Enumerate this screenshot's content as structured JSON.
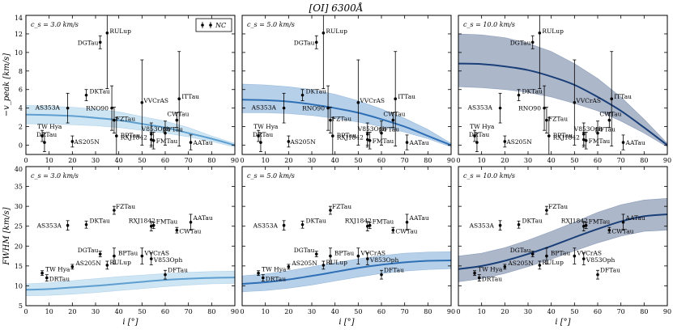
{
  "figure_title": "[OI] 6300Å",
  "legend": {
    "label": "NC"
  },
  "chart_data": {
    "type": "scatter",
    "title": "[OI] 6300Å",
    "xlabel": "i [°]",
    "xlim": [
      0,
      90
    ],
    "xticks": [
      0,
      10,
      20,
      30,
      40,
      50,
      60,
      70,
      80,
      90
    ],
    "rows": [
      {
        "ylabel": "−v_peak [km/s]",
        "ylim": [
          -1,
          14
        ],
        "yticks": [
          0,
          2,
          4,
          6,
          8,
          10,
          12,
          14
        ],
        "stars": [
          {
            "name": "TW Hya",
            "x": 7,
            "y": 1.0,
            "err": 0.6,
            "lx": -6,
            "ly": -9
          },
          {
            "name": "DRTau",
            "x": 8,
            "y": 0.3,
            "err": 1.0,
            "lx": -10,
            "ly": -7
          },
          {
            "name": "AS205N",
            "x": 20,
            "y": 0.4,
            "err": 0.6,
            "lx": 2,
            "ly": 3
          },
          {
            "name": "AS353A",
            "x": 18,
            "y": 4.0,
            "err": 1.6,
            "lx": -40,
            "ly": 2
          },
          {
            "name": "DKTau",
            "x": 26,
            "y": 5.4,
            "err": 0.6,
            "lx": 4,
            "ly": -2
          },
          {
            "name": "DGTau",
            "x": 32,
            "y": 11.1,
            "err": 0.7,
            "lx": -28,
            "ly": 3
          },
          {
            "name": "RULup",
            "x": 35,
            "y": 12.1,
            "err": 6.0,
            "lx": 3,
            "ly": 0
          },
          {
            "name": "RNO90",
            "x": 37,
            "y": 4.0,
            "err": 2.4,
            "lx": -32,
            "ly": 3
          },
          {
            "name": "FZTau",
            "x": 38,
            "y": 2.7,
            "err": 1.4,
            "lx": 2,
            "ly": 1
          },
          {
            "name": "BPTau",
            "x": 39,
            "y": 1.0,
            "err": 2.0,
            "lx": 5,
            "ly": 2
          },
          {
            "name": "VVCrAS",
            "x": 50,
            "y": 4.6,
            "err": 4.6,
            "lx": 2,
            "ly": 0
          },
          {
            "name": "V853Oph",
            "x": 54,
            "y": 1.2,
            "err": 1.2,
            "lx": -12,
            "ly": -4
          },
          {
            "name": "RXJ1842",
            "x": 54,
            "y": 0.6,
            "err": 0.8,
            "lx": -38,
            "ly": 0
          },
          {
            "name": "FMTau",
            "x": 55,
            "y": 0.5,
            "err": 0.9,
            "lx": 3,
            "ly": 3
          },
          {
            "name": "DFTau",
            "x": 60,
            "y": 1.3,
            "err": 1.3,
            "lx": -3,
            "ly": -2
          },
          {
            "name": "CWTau",
            "x": 65,
            "y": 2.7,
            "err": 0.8,
            "lx": -12,
            "ly": -5
          },
          {
            "name": "ITTau",
            "x": 66,
            "y": 5.0,
            "err": 5.1,
            "lx": 3,
            "ly": 0
          },
          {
            "name": "AATau",
            "x": 71,
            "y": 0.3,
            "err": 0.8,
            "lx": 3,
            "ly": 3
          }
        ]
      },
      {
        "ylabel": "FWHM [km/s]",
        "ylim": [
          5,
          40
        ],
        "yticks": [
          5,
          10,
          15,
          20,
          25,
          30,
          35,
          40
        ],
        "stars": [
          {
            "name": "TW Hya",
            "x": 7,
            "y": 13.2,
            "err": 0.6,
            "lx": 4,
            "ly": -2
          },
          {
            "name": "DRTau",
            "x": 9,
            "y": 12.0,
            "err": 0.8,
            "lx": 3,
            "ly": 4
          },
          {
            "name": "AS205N",
            "x": 20,
            "y": 14.8,
            "err": 0.6,
            "lx": 4,
            "ly": -2
          },
          {
            "name": "AS353A",
            "x": 18,
            "y": 25.2,
            "err": 1.2,
            "lx": -38,
            "ly": 3
          },
          {
            "name": "DKTau",
            "x": 26,
            "y": 25.4,
            "err": 0.9,
            "lx": 4,
            "ly": -2
          },
          {
            "name": "DGTau",
            "x": 32,
            "y": 18.0,
            "err": 0.7,
            "lx": -28,
            "ly": -2
          },
          {
            "name": "RULup",
            "x": 35,
            "y": 15.2,
            "err": 1.0,
            "lx": 3,
            "ly": -1
          },
          {
            "name": "BPTau",
            "x": 38,
            "y": 17.5,
            "err": 2.0,
            "lx": 5,
            "ly": -1
          },
          {
            "name": "FZTau",
            "x": 38,
            "y": 29.0,
            "err": 1.0,
            "lx": 2,
            "ly": -2
          },
          {
            "name": "RXJ1842",
            "x": 54,
            "y": 25.0,
            "err": 1.2,
            "lx": -28,
            "ly": -4
          },
          {
            "name": "FMTau",
            "x": 55,
            "y": 25.2,
            "err": 0.8,
            "lx": 3,
            "ly": -2
          },
          {
            "name": "VVCrAS",
            "x": 50,
            "y": 17.5,
            "err": 2.0,
            "lx": 3,
            "ly": -1
          },
          {
            "name": "V853Oph",
            "x": 54,
            "y": 16.8,
            "err": 1.5,
            "lx": 3,
            "ly": 4
          },
          {
            "name": "DFTau",
            "x": 60,
            "y": 12.8,
            "err": 1.1,
            "lx": 3,
            "ly": -3
          },
          {
            "name": "CWTau",
            "x": 65,
            "y": 24.0,
            "err": 0.7,
            "lx": 3,
            "ly": 4
          },
          {
            "name": "AATau",
            "x": 71,
            "y": 26.0,
            "err": 2.0,
            "lx": 3,
            "ly": -3
          }
        ]
      }
    ],
    "columns": [
      {
        "label": "c_s = 3.0 km/s",
        "line_color": "#5e9fd0",
        "band_color": "#a6cfea",
        "band_opacity": 0.55,
        "vpeak_model": {
          "i": [
            0,
            10,
            20,
            30,
            40,
            50,
            60,
            70,
            80,
            90
          ],
          "mid": [
            3.3,
            3.25,
            3.15,
            2.95,
            2.7,
            2.3,
            1.9,
            1.3,
            0.7,
            0.0
          ],
          "lo": [
            2.3,
            2.3,
            2.2,
            2.1,
            1.9,
            1.6,
            1.3,
            0.9,
            0.4,
            -0.2
          ],
          "hi": [
            4.3,
            4.2,
            4.1,
            3.9,
            3.6,
            3.1,
            2.6,
            1.9,
            1.0,
            0.2
          ]
        },
        "fwhm_model": {
          "i": [
            0,
            10,
            20,
            30,
            40,
            50,
            60,
            70,
            80,
            90
          ],
          "mid": [
            9.0,
            9.2,
            9.6,
            10.0,
            10.5,
            11.0,
            11.5,
            11.8,
            12.0,
            12.1
          ],
          "lo": [
            7.5,
            7.6,
            7.9,
            8.3,
            8.8,
            9.3,
            9.8,
            10.2,
            10.5,
            10.6
          ],
          "hi": [
            10.5,
            10.8,
            11.3,
            11.8,
            12.3,
            12.7,
            13.1,
            13.4,
            13.6,
            13.7
          ]
        }
      },
      {
        "label": "c_s = 5.0 km/s",
        "line_color": "#2e6fb5",
        "band_color": "#7ba9d9",
        "band_opacity": 0.55,
        "vpeak_model": {
          "i": [
            0,
            10,
            20,
            30,
            40,
            50,
            60,
            70,
            80,
            90
          ],
          "mid": [
            4.9,
            4.85,
            4.7,
            4.4,
            4.0,
            3.5,
            2.8,
            2.0,
            1.0,
            0.0
          ],
          "lo": [
            3.5,
            3.5,
            3.4,
            3.2,
            2.9,
            2.5,
            2.0,
            1.4,
            0.7,
            -0.2
          ],
          "hi": [
            6.6,
            6.5,
            6.3,
            6.0,
            5.5,
            4.8,
            3.9,
            2.9,
            1.7,
            0.2
          ]
        },
        "fwhm_model": {
          "i": [
            0,
            10,
            20,
            30,
            40,
            50,
            60,
            70,
            80,
            90
          ],
          "mid": [
            10.5,
            10.9,
            11.6,
            12.5,
            13.5,
            14.5,
            15.3,
            15.9,
            16.3,
            16.4
          ],
          "lo": [
            8.5,
            8.8,
            9.4,
            10.2,
            11.2,
            12.2,
            13.1,
            13.7,
            14.1,
            14.3
          ],
          "hi": [
            12.5,
            13.0,
            13.8,
            14.8,
            15.8,
            16.8,
            17.6,
            18.2,
            18.5,
            18.6
          ]
        }
      },
      {
        "label": "c_s = 10.0 km/s",
        "line_color": "#1a3f78",
        "band_color": "#5c6f95",
        "band_opacity": 0.5,
        "vpeak_model": {
          "i": [
            0,
            10,
            20,
            30,
            40,
            50,
            60,
            70,
            80,
            90
          ],
          "mid": [
            8.8,
            8.75,
            8.5,
            8.1,
            7.4,
            6.5,
            5.2,
            3.7,
            1.9,
            0.0
          ],
          "lo": [
            6.3,
            6.2,
            6.0,
            5.7,
            5.2,
            4.5,
            3.7,
            2.6,
            1.3,
            -0.2
          ],
          "hi": [
            12.0,
            11.9,
            11.6,
            11.0,
            10.1,
            8.8,
            7.2,
            5.2,
            2.8,
            0.2
          ]
        },
        "fwhm_model": {
          "i": [
            0,
            10,
            20,
            30,
            40,
            50,
            60,
            70,
            80,
            90
          ],
          "mid": [
            14.2,
            15.0,
            16.3,
            18.0,
            20.0,
            22.2,
            24.3,
            26.2,
            27.5,
            28.0
          ],
          "lo": [
            11.0,
            11.8,
            13.1,
            14.8,
            16.7,
            18.8,
            20.8,
            22.5,
            23.7,
            24.0
          ],
          "hi": [
            17.5,
            18.2,
            19.6,
            21.5,
            23.7,
            26.0,
            28.5,
            30.4,
            31.6,
            32.0
          ]
        }
      }
    ]
  }
}
